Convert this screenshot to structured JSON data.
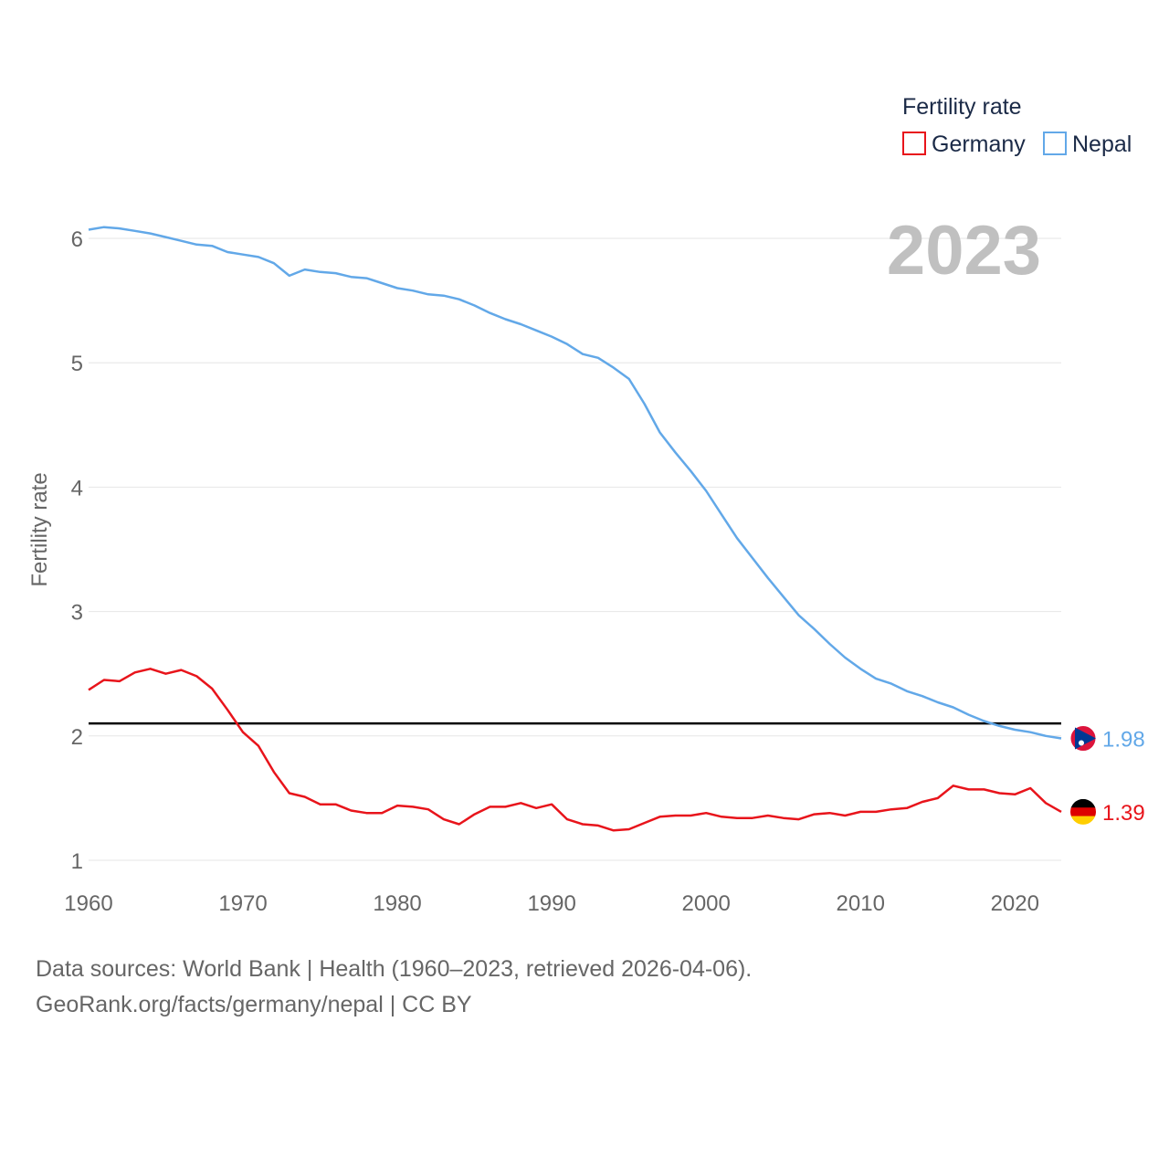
{
  "chart_data": {
    "type": "line",
    "title": "",
    "legend_title": "Fertility rate",
    "ylabel": "Fertility rate",
    "xlabel": "",
    "year_label": "2023",
    "xlim": [
      1960,
      2023
    ],
    "ylim": [
      1,
      6
    ],
    "x_ticks": [
      1960,
      1970,
      1980,
      1990,
      2000,
      2010,
      2020
    ],
    "y_ticks": [
      1,
      2,
      3,
      4,
      5,
      6
    ],
    "reference_line": {
      "value": 2.1,
      "color": "#000000"
    },
    "legend_position": "top-right",
    "x": [
      1960,
      1961,
      1962,
      1963,
      1964,
      1965,
      1966,
      1967,
      1968,
      1969,
      1970,
      1971,
      1972,
      1973,
      1974,
      1975,
      1976,
      1977,
      1978,
      1979,
      1980,
      1981,
      1982,
      1983,
      1984,
      1985,
      1986,
      1987,
      1988,
      1989,
      1990,
      1991,
      1992,
      1993,
      1994,
      1995,
      1996,
      1997,
      1998,
      1999,
      2000,
      2001,
      2002,
      2003,
      2004,
      2005,
      2006,
      2007,
      2008,
      2009,
      2010,
      2011,
      2012,
      2013,
      2014,
      2015,
      2016,
      2017,
      2018,
      2019,
      2020,
      2021,
      2022,
      2023
    ],
    "series": [
      {
        "name": "Germany",
        "color": "#e8141b",
        "end_label": "1.39",
        "flag_icon": "germany-flag",
        "values": [
          2.37,
          2.45,
          2.44,
          2.51,
          2.54,
          2.5,
          2.53,
          2.48,
          2.38,
          2.21,
          2.03,
          1.92,
          1.71,
          1.54,
          1.51,
          1.45,
          1.45,
          1.4,
          1.38,
          1.38,
          1.44,
          1.43,
          1.41,
          1.33,
          1.29,
          1.37,
          1.43,
          1.43,
          1.46,
          1.42,
          1.45,
          1.33,
          1.29,
          1.28,
          1.24,
          1.25,
          1.3,
          1.35,
          1.36,
          1.36,
          1.38,
          1.35,
          1.34,
          1.34,
          1.36,
          1.34,
          1.33,
          1.37,
          1.38,
          1.36,
          1.39,
          1.39,
          1.41,
          1.42,
          1.47,
          1.5,
          1.6,
          1.57,
          1.57,
          1.54,
          1.53,
          1.58,
          1.46,
          1.39
        ]
      },
      {
        "name": "Nepal",
        "color": "#62a8e8",
        "end_label": "1.98",
        "flag_icon": "nepal-flag",
        "values": [
          6.07,
          6.09,
          6.08,
          6.06,
          6.04,
          6.01,
          5.98,
          5.95,
          5.94,
          5.89,
          5.87,
          5.85,
          5.8,
          5.7,
          5.75,
          5.73,
          5.72,
          5.69,
          5.68,
          5.64,
          5.6,
          5.58,
          5.55,
          5.54,
          5.51,
          5.46,
          5.4,
          5.35,
          5.31,
          5.26,
          5.21,
          5.15,
          5.07,
          5.04,
          4.96,
          4.87,
          4.67,
          4.44,
          4.28,
          4.13,
          3.97,
          3.78,
          3.59,
          3.43,
          3.27,
          3.12,
          2.97,
          2.86,
          2.74,
          2.63,
          2.54,
          2.46,
          2.42,
          2.36,
          2.32,
          2.27,
          2.23,
          2.17,
          2.12,
          2.08,
          2.05,
          2.03,
          2.0,
          1.98
        ]
      }
    ]
  },
  "footer": {
    "source_line": "Data sources: World Bank | Health (1960–2023, retrieved 2026-04-06).",
    "credit_line": "GeoRank.org/facts/germany/nepal | CC BY"
  }
}
